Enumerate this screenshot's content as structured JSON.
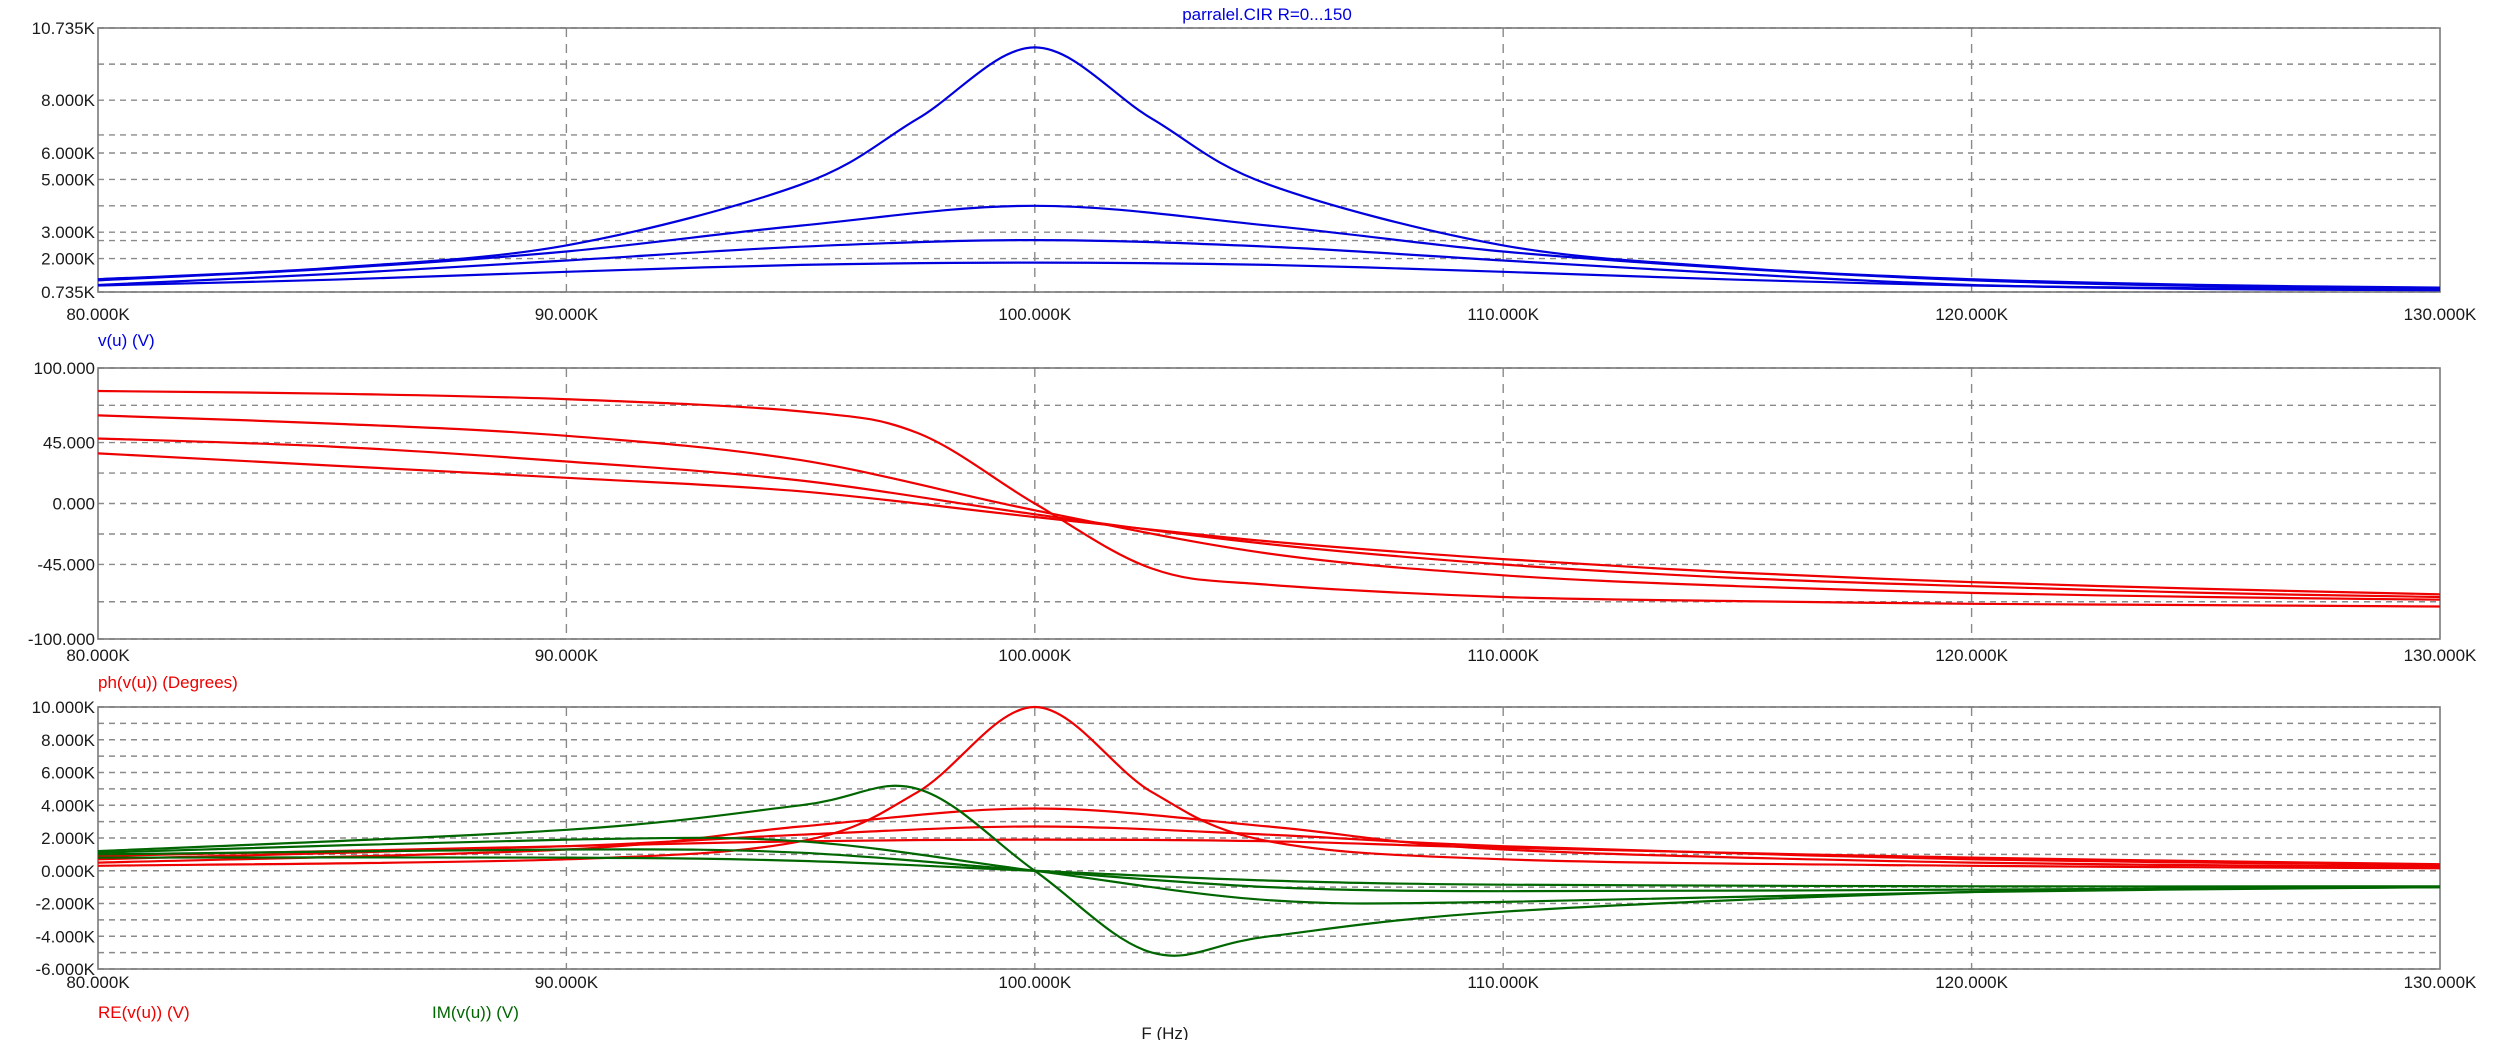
{
  "chart_data": [
    {
      "type": "line",
      "title": "parralel.CIR R=0...150",
      "ylabel": "v(u) (V)",
      "x_ticks": [
        "80.000K",
        "90.000K",
        "100.000K",
        "110.000K",
        "120.000K",
        "130.000K"
      ],
      "xlim": [
        80000,
        130000
      ],
      "y_ticks": [
        "10.735K",
        "8.000K",
        "6.000K",
        "5.000K",
        "3.000K",
        "2.000K",
        "0.735K"
      ],
      "ylim": [
        735,
        10735
      ],
      "grid": true,
      "color": "#0000dd",
      "series": [
        {
          "x": [
            80000,
            85000,
            90000,
            95000,
            97500,
            100000,
            102500,
            105000,
            110000,
            115000,
            120000,
            125000,
            130000
          ],
          "values": [
            1220,
            1650,
            2500,
            4800,
            7300,
            10000,
            7300,
            4800,
            2500,
            1650,
            1220,
            1000,
            900
          ]
        },
        {
          "x": [
            80000,
            85000,
            90000,
            95000,
            100000,
            105000,
            110000,
            115000,
            120000,
            125000,
            130000
          ],
          "values": [
            1180,
            1620,
            2270,
            3250,
            4000,
            3250,
            2270,
            1620,
            1180,
            960,
            850
          ]
        },
        {
          "x": [
            80000,
            85000,
            90000,
            95000,
            100000,
            105000,
            110000,
            115000,
            120000,
            125000,
            130000
          ],
          "values": [
            1000,
            1420,
            1930,
            2450,
            2700,
            2450,
            1930,
            1420,
            1000,
            880,
            820
          ]
        },
        {
          "x": [
            80000,
            85000,
            90000,
            95000,
            100000,
            105000,
            110000,
            115000,
            120000,
            125000,
            130000
          ],
          "values": [
            980,
            1200,
            1500,
            1760,
            1850,
            1760,
            1500,
            1200,
            980,
            850,
            800
          ]
        }
      ]
    },
    {
      "type": "line",
      "ylabel": "ph(v(u)) (Degrees)",
      "x_ticks": [
        "80.000K",
        "90.000K",
        "100.000K",
        "110.000K",
        "120.000K",
        "130.000K"
      ],
      "xlim": [
        80000,
        130000
      ],
      "y_ticks": [
        "100.000",
        "45.000",
        "0.000",
        "-45.000",
        "-100.000"
      ],
      "ylim": [
        -100,
        100
      ],
      "grid": true,
      "color": "#ee0000",
      "series": [
        {
          "x": [
            80000,
            85000,
            90000,
            95000,
            97500,
            100000,
            102500,
            105000,
            110000,
            115000,
            120000,
            125000,
            130000
          ],
          "values": [
            83,
            81,
            77,
            68,
            52,
            0,
            -48,
            -60,
            -69,
            -72,
            -74,
            -75,
            -76
          ]
        },
        {
          "x": [
            80000,
            85000,
            90000,
            95000,
            100000,
            105000,
            110000,
            115000,
            120000,
            125000,
            130000
          ],
          "values": [
            65,
            59,
            50,
            32,
            -5,
            -37,
            -53,
            -61,
            -66,
            -69,
            -71
          ]
        },
        {
          "x": [
            80000,
            85000,
            90000,
            95000,
            100000,
            105000,
            110000,
            115000,
            120000,
            125000,
            130000
          ],
          "values": [
            48,
            42,
            31,
            17,
            -8,
            -30,
            -45,
            -55,
            -61,
            -66,
            -69
          ]
        },
        {
          "x": [
            80000,
            85000,
            90000,
            95000,
            100000,
            105000,
            110000,
            115000,
            120000,
            125000,
            130000
          ],
          "values": [
            37,
            28,
            19,
            9,
            -10,
            -28,
            -41,
            -51,
            -58,
            -63,
            -67
          ]
        }
      ]
    },
    {
      "type": "line",
      "xlabel": "F (Hz)",
      "x_ticks": [
        "80.000K",
        "90.000K",
        "100.000K",
        "110.000K",
        "120.000K",
        "130.000K"
      ],
      "xlim": [
        80000,
        130000
      ],
      "y_ticks": [
        "10.000K",
        "8.000K",
        "6.000K",
        "4.000K",
        "2.000K",
        "0.000K",
        "-2.000K",
        "-4.000K",
        "-6.000K"
      ],
      "ylim": [
        -6000,
        10000
      ],
      "grid": true,
      "legend": [
        {
          "name": "RE(v(u)) (V)",
          "color": "#ee0000"
        },
        {
          "name": "IM(v(u)) (V)",
          "color": "#006600"
        }
      ],
      "series": [
        {
          "group": "RE",
          "color": "#ee0000",
          "x": [
            80000,
            90000,
            95000,
            97500,
            100000,
            102500,
            105000,
            110000,
            120000,
            130000
          ],
          "values": [
            300,
            700,
            1800,
            4800,
            10000,
            4800,
            1800,
            700,
            300,
            150
          ]
        },
        {
          "group": "RE",
          "color": "#ee0000",
          "x": [
            80000,
            90000,
            95000,
            100000,
            105000,
            110000,
            120000,
            130000
          ],
          "values": [
            500,
            1300,
            2700,
            3800,
            2700,
            1300,
            500,
            250
          ]
        },
        {
          "group": "RE",
          "color": "#ee0000",
          "x": [
            80000,
            90000,
            95000,
            100000,
            105000,
            110000,
            120000,
            130000
          ],
          "values": [
            700,
            1500,
            2200,
            2700,
            2200,
            1500,
            700,
            350
          ]
        },
        {
          "group": "RE",
          "color": "#ee0000",
          "x": [
            80000,
            90000,
            95000,
            100000,
            105000,
            110000,
            120000,
            130000
          ],
          "values": [
            900,
            1500,
            1800,
            1900,
            1800,
            1400,
            800,
            400
          ]
        },
        {
          "group": "IM",
          "color": "#006600",
          "x": [
            80000,
            90000,
            95000,
            97500,
            100000,
            102500,
            105000,
            110000,
            120000,
            130000
          ],
          "values": [
            1200,
            2500,
            4000,
            5000,
            0,
            -5000,
            -4000,
            -2500,
            -1300,
            -1000
          ]
        },
        {
          "group": "IM",
          "color": "#006600",
          "x": [
            80000,
            90000,
            95000,
            100000,
            105000,
            110000,
            120000,
            130000
          ],
          "values": [
            1100,
            1900,
            1800,
            0,
            -1800,
            -1900,
            -1300,
            -1000
          ]
        },
        {
          "group": "IM",
          "color": "#006600",
          "x": [
            80000,
            90000,
            95000,
            100000,
            105000,
            110000,
            120000,
            130000
          ],
          "values": [
            1000,
            1300,
            1100,
            0,
            -1000,
            -1250,
            -1150,
            -1000
          ]
        },
        {
          "group": "IM",
          "color": "#006600",
          "x": [
            80000,
            90000,
            95000,
            100000,
            105000,
            110000,
            120000,
            130000
          ],
          "values": [
            800,
            800,
            600,
            0,
            -600,
            -850,
            -950,
            -950
          ]
        }
      ]
    }
  ]
}
